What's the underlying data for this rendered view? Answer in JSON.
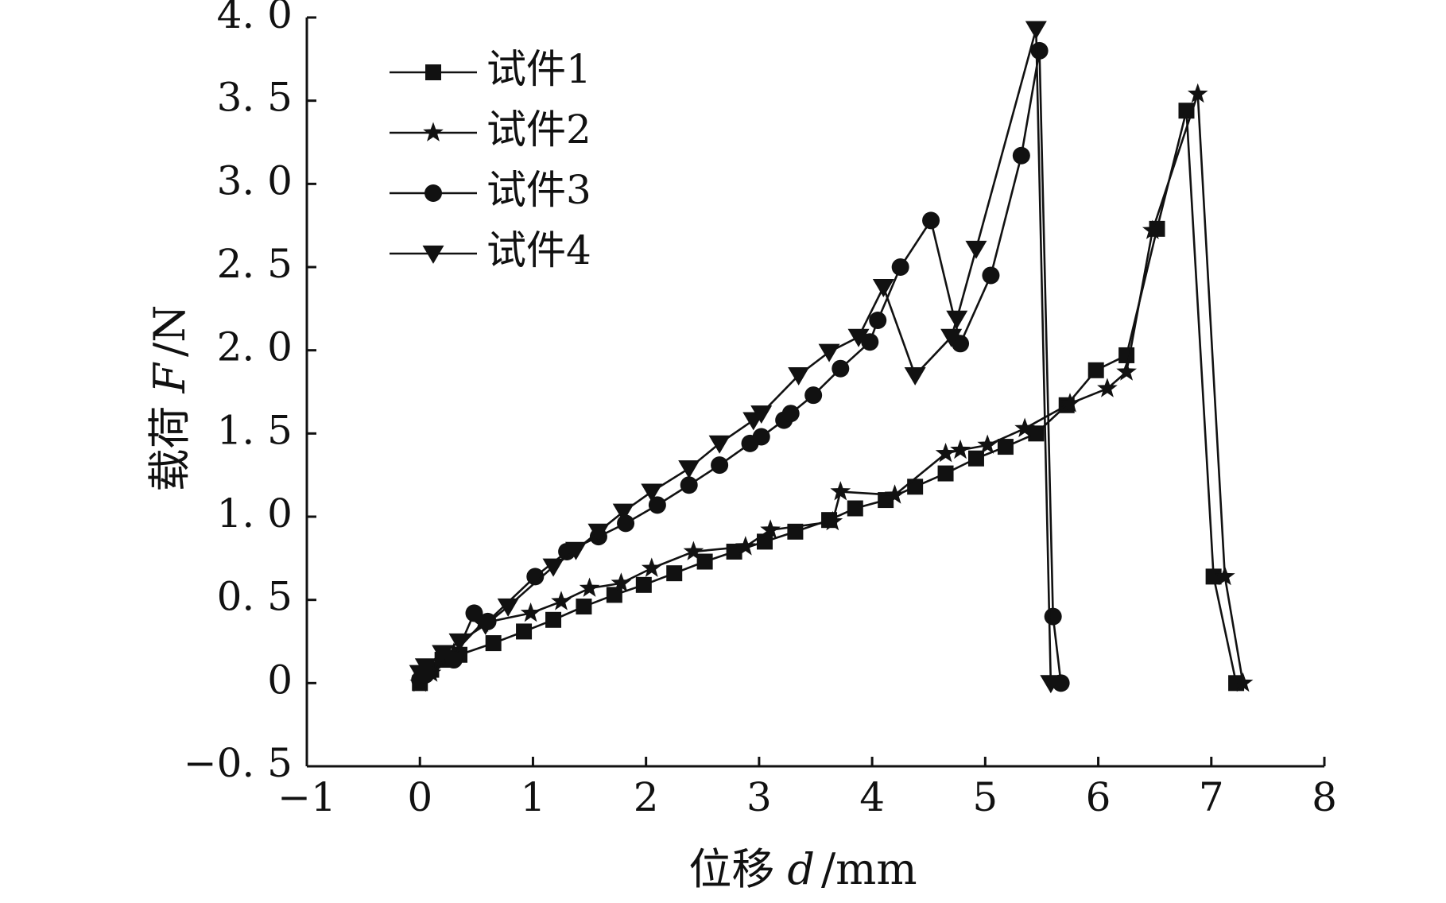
{
  "chart_data": {
    "type": "line",
    "xlabel": "位移",
    "xlabel_var": "d",
    "xlabel_unit": "/mm",
    "ylabel": "载荷",
    "ylabel_var": "F",
    "ylabel_unit": "/N",
    "xlim": [
      -1,
      8
    ],
    "ylim": [
      -0.5,
      4.0
    ],
    "xticks": [
      -1,
      0,
      1,
      2,
      3,
      4,
      5,
      6,
      7,
      8
    ],
    "yticks": [
      -0.5,
      0,
      0.5,
      1.0,
      1.5,
      2.0,
      2.5,
      3.0,
      3.5,
      4.0
    ],
    "xtick_labels": [
      "−1",
      "0",
      "1",
      "2",
      "3",
      "4",
      "5",
      "6",
      "7",
      "8"
    ],
    "ytick_labels": [
      "−0. 5",
      "0",
      "0. 5",
      "1. 0",
      "1. 5",
      "2. 0",
      "2. 5",
      "3. 0",
      "3. 5",
      "4. 0"
    ],
    "grid": false,
    "legend_position": "top-left",
    "series": [
      {
        "name": "试件1",
        "marker": "square",
        "color": "#111111",
        "x": [
          0,
          0.1,
          0.2,
          0.35,
          0.65,
          0.92,
          1.18,
          1.45,
          1.72,
          1.98,
          2.25,
          2.52,
          2.78,
          3.05,
          3.32,
          3.62,
          3.85,
          4.12,
          4.38,
          4.65,
          4.92,
          5.18,
          5.45,
          5.72,
          5.98,
          6.25,
          6.52,
          6.78,
          7.02,
          7.22
        ],
        "y": [
          0,
          0.08,
          0.14,
          0.17,
          0.24,
          0.31,
          0.38,
          0.46,
          0.53,
          0.59,
          0.66,
          0.73,
          0.79,
          0.85,
          0.91,
          0.98,
          1.05,
          1.1,
          1.18,
          1.26,
          1.35,
          1.42,
          1.5,
          1.67,
          1.88,
          1.97,
          2.73,
          3.44,
          0.64,
          0
        ]
      },
      {
        "name": "试件2",
        "marker": "star",
        "color": "#111111",
        "x": [
          0,
          0.1,
          0.3,
          0.55,
          0.98,
          1.25,
          1.5,
          1.78,
          2.05,
          2.42,
          2.88,
          3.1,
          3.65,
          3.72,
          4.2,
          4.65,
          4.78,
          5.02,
          5.35,
          5.75,
          6.08,
          6.25,
          6.48,
          6.88,
          7.12,
          7.28
        ],
        "y": [
          0,
          0.06,
          0.18,
          0.36,
          0.42,
          0.49,
          0.57,
          0.6,
          0.69,
          0.79,
          0.82,
          0.92,
          0.97,
          1.15,
          1.13,
          1.38,
          1.4,
          1.43,
          1.53,
          1.68,
          1.77,
          1.87,
          2.72,
          3.54,
          0.64,
          0
        ]
      },
      {
        "name": "试件3",
        "marker": "circle",
        "color": "#111111",
        "x": [
          0,
          0.05,
          0.3,
          0.48,
          0.6,
          1.02,
          1.3,
          1.58,
          1.82,
          2.1,
          2.38,
          2.65,
          2.92,
          3.02,
          3.22,
          3.28,
          3.48,
          3.72,
          3.98,
          4.05,
          4.25,
          4.52,
          4.78,
          5.05,
          5.32,
          5.48,
          5.6,
          5.67
        ],
        "y": [
          0.02,
          0.05,
          0.14,
          0.42,
          0.37,
          0.64,
          0.79,
          0.88,
          0.96,
          1.07,
          1.19,
          1.31,
          1.44,
          1.48,
          1.58,
          1.62,
          1.73,
          1.89,
          2.05,
          2.18,
          2.5,
          2.78,
          2.04,
          2.45,
          3.17,
          3.8,
          0.4,
          0
        ]
      },
      {
        "name": "试件4",
        "marker": "triangle-down",
        "color": "#111111",
        "x": [
          0,
          0.05,
          0.2,
          0.35,
          0.58,
          0.78,
          1.18,
          1.38,
          1.58,
          1.8,
          2.05,
          2.38,
          2.65,
          2.95,
          3.02,
          3.35,
          3.62,
          3.88,
          4.1,
          4.38,
          4.7,
          4.75,
          4.92,
          5.45,
          5.58
        ],
        "y": [
          0.06,
          0.1,
          0.18,
          0.25,
          0.35,
          0.46,
          0.7,
          0.8,
          0.91,
          1.03,
          1.15,
          1.29,
          1.44,
          1.58,
          1.62,
          1.85,
          1.99,
          2.08,
          2.38,
          1.85,
          2.08,
          2.19,
          2.61,
          3.93,
          0
        ]
      }
    ]
  }
}
